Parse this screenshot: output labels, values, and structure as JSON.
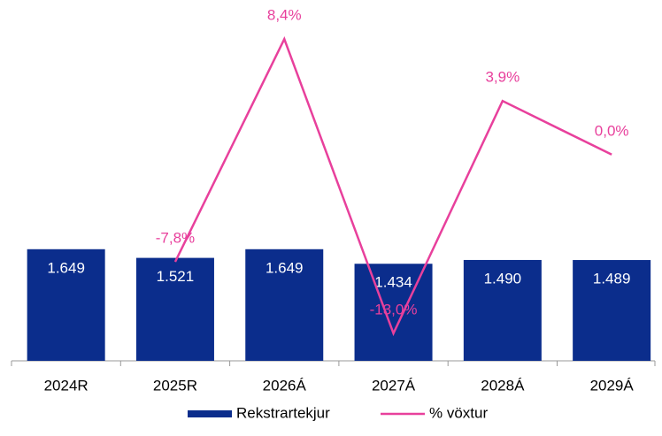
{
  "chart_data": {
    "type": "bar",
    "categories": [
      "2024R",
      "2025R",
      "2026Á",
      "2027Á",
      "2028Á",
      "2029Á"
    ],
    "series": [
      {
        "name": "Rekstrartekjur",
        "type": "bar",
        "color": "#0b2d8c",
        "values": [
          1649,
          1521,
          1649,
          1434,
          1490,
          1489
        ],
        "value_labels": [
          "1.649",
          "1.521",
          "1.649",
          "1.434",
          "1.490",
          "1.489"
        ]
      },
      {
        "name": "% vöxtur",
        "type": "line",
        "axis": "y2",
        "color": "#e8409c",
        "values": [
          null,
          -7.8,
          8.4,
          -13.0,
          3.9,
          0.0
        ],
        "value_labels": [
          null,
          "-7,8%",
          "8,4%",
          "-13,0%",
          "3,9%",
          "0,0%"
        ]
      }
    ],
    "ylim": [
      0,
      5200
    ],
    "y2lim": [
      -15,
      10.6
    ]
  }
}
